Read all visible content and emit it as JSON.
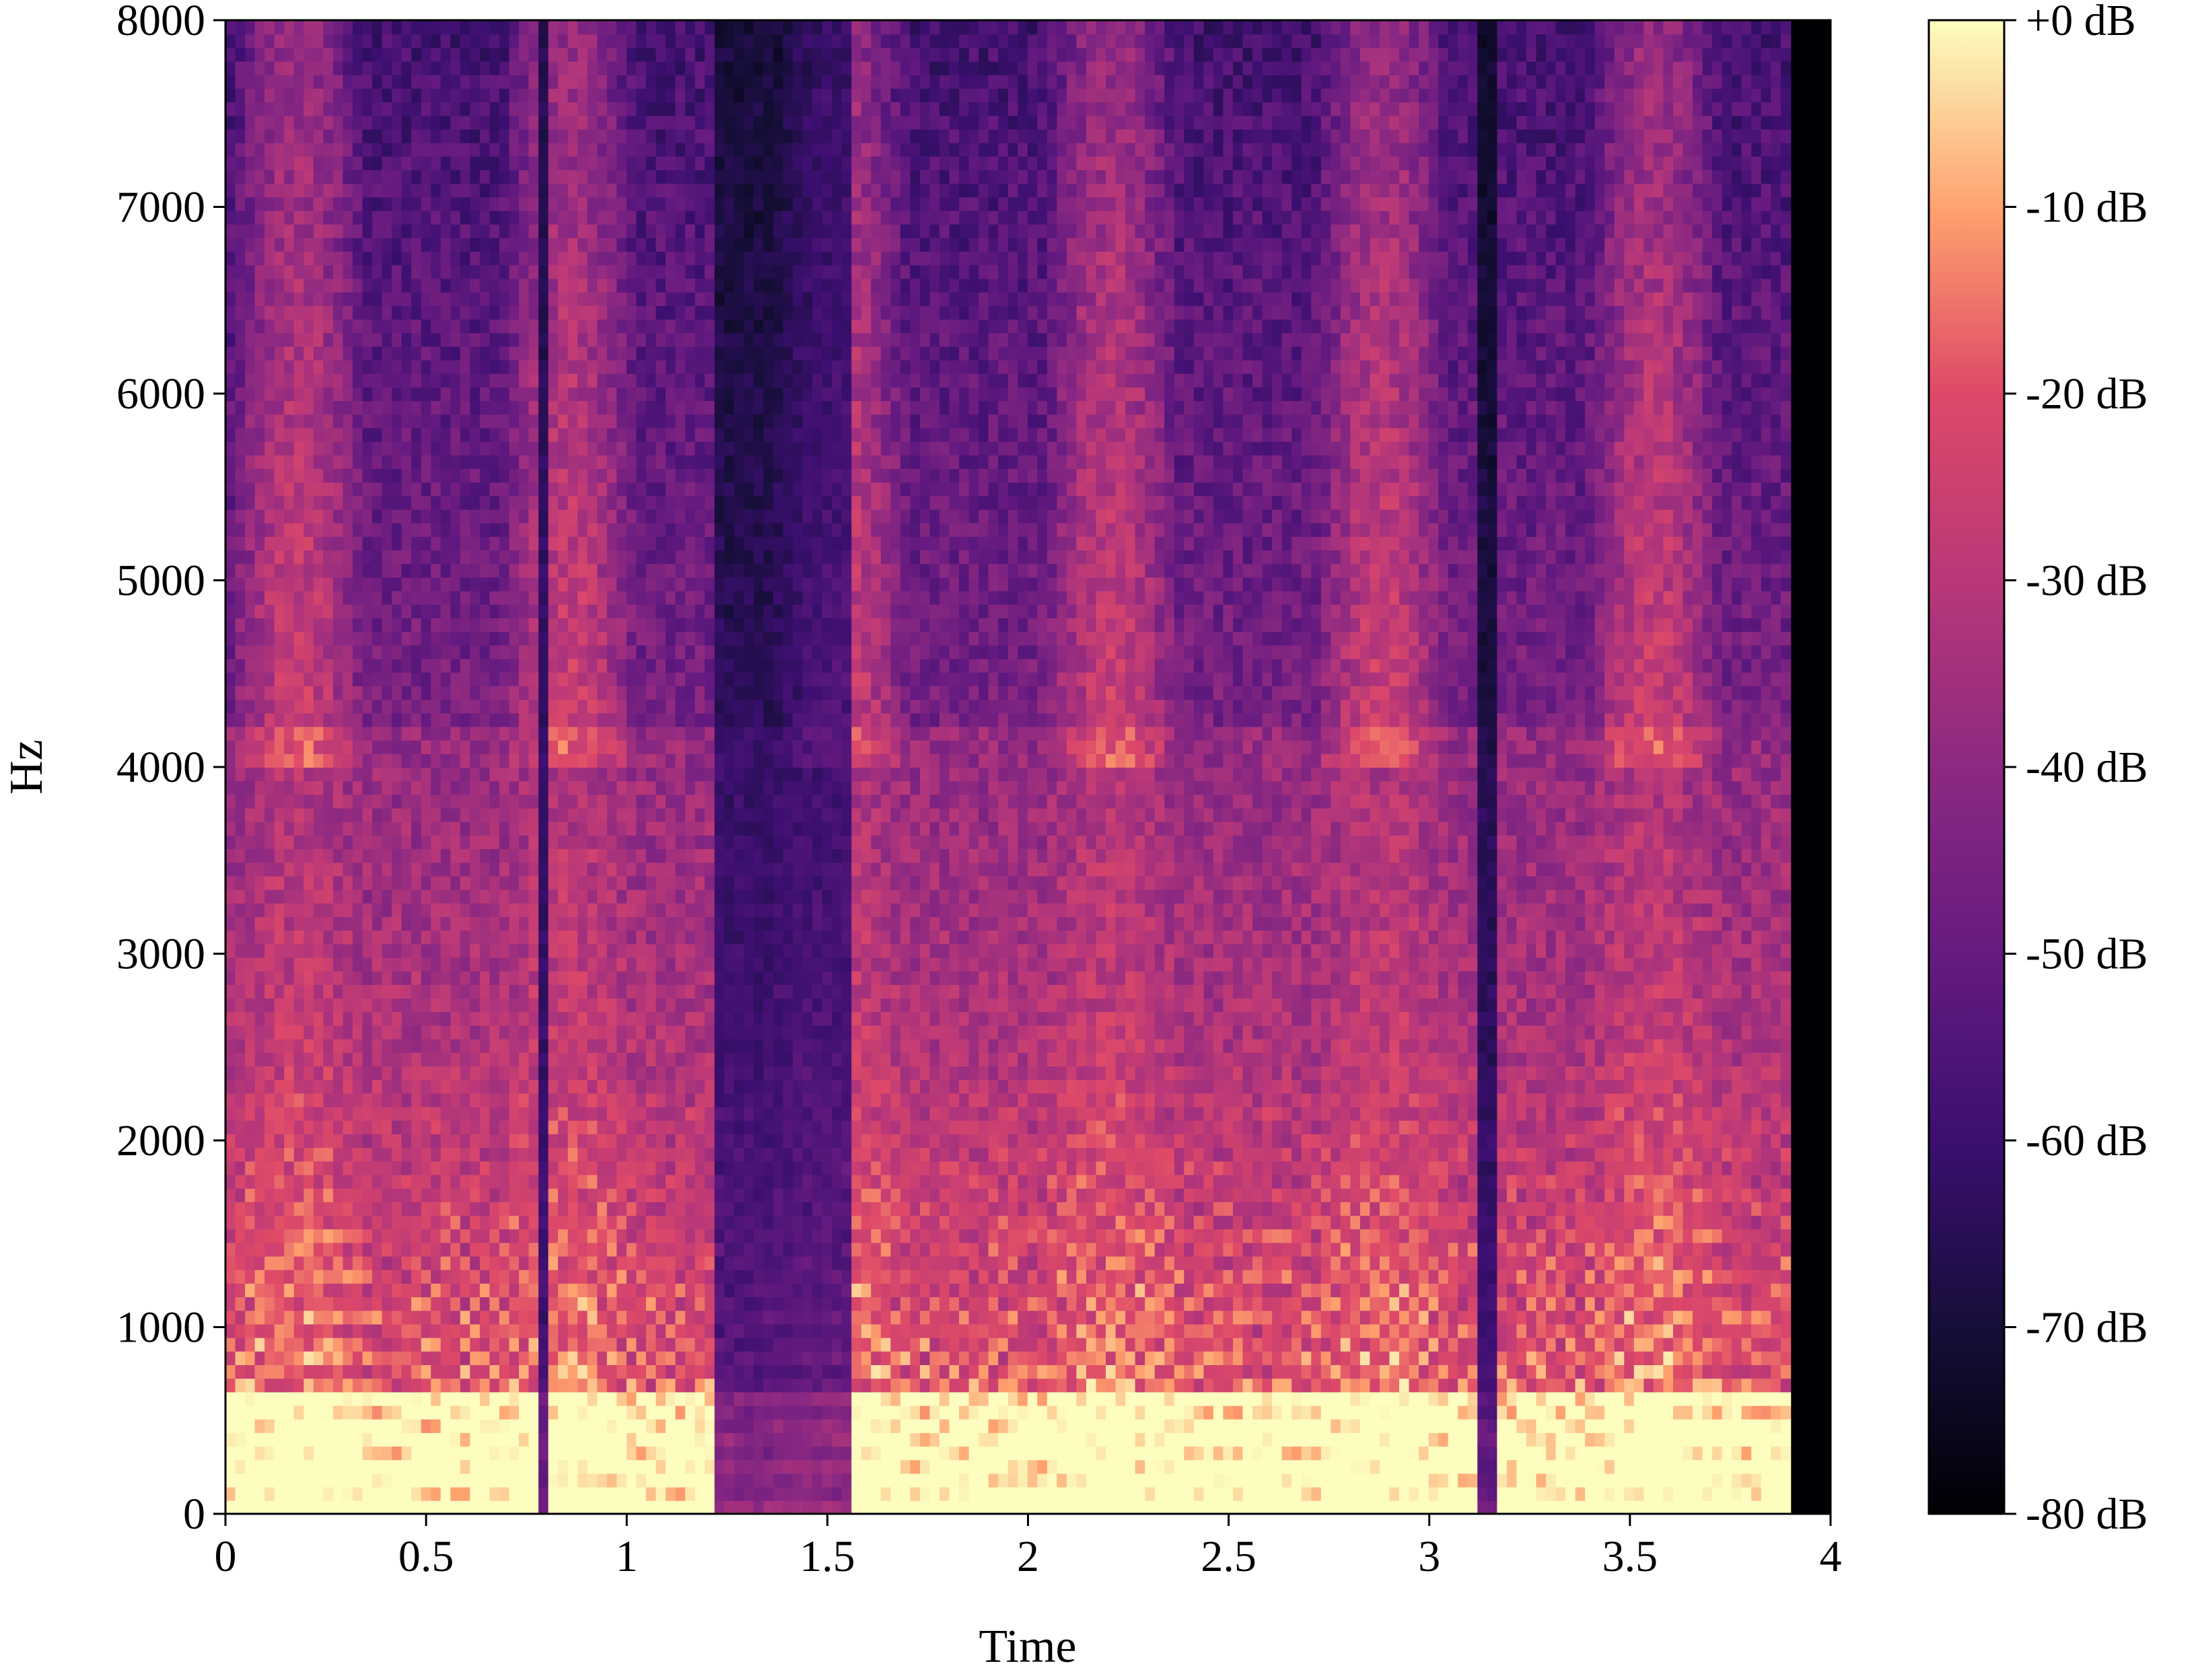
{
  "chart_data": {
    "type": "heatmap",
    "subtype": "spectrogram",
    "title": "",
    "xlabel": "Time",
    "ylabel": "Hz",
    "xlim": [
      0,
      4.0
    ],
    "ylim": [
      0,
      8000
    ],
    "x_ticks": [
      0,
      0.5,
      1,
      1.5,
      2,
      2.5,
      3,
      3.5,
      4
    ],
    "x_tick_labels": [
      "0",
      "0.5",
      "1",
      "1.5",
      "2",
      "2.5",
      "3",
      "3.5",
      "4"
    ],
    "y_ticks": [
      0,
      1000,
      2000,
      3000,
      4000,
      5000,
      6000,
      7000,
      8000
    ],
    "y_tick_labels": [
      "0",
      "1000",
      "2000",
      "3000",
      "4000",
      "5000",
      "6000",
      "7000",
      "8000"
    ],
    "colorbar": {
      "colormap": "magma",
      "range_db": [
        -80,
        0
      ],
      "ticks": [
        0,
        -10,
        -20,
        -30,
        -40,
        -50,
        -60,
        -70,
        -80
      ],
      "tick_labels": [
        "+0 dB",
        "-10 dB",
        "-20 dB",
        "-30 dB",
        "-40 dB",
        "-50 dB",
        "-60 dB",
        "-70 dB",
        "-80 dB"
      ]
    },
    "grid": false,
    "data_extent_seconds": [
      0,
      3.9
    ],
    "notes_segments_sec": [
      {
        "start": 0.0,
        "end": 0.76,
        "kind": "voiced"
      },
      {
        "start": 0.76,
        "end": 0.8,
        "kind": "gap"
      },
      {
        "start": 0.8,
        "end": 1.2,
        "kind": "voiced"
      },
      {
        "start": 1.2,
        "end": 1.55,
        "kind": "low-energy"
      },
      {
        "start": 1.55,
        "end": 2.8,
        "kind": "voiced"
      },
      {
        "start": 2.8,
        "end": 3.1,
        "kind": "voiced"
      },
      {
        "start": 3.1,
        "end": 3.15,
        "kind": "gap"
      },
      {
        "start": 3.15,
        "end": 3.9,
        "kind": "voiced"
      },
      {
        "start": 3.9,
        "end": 4.0,
        "kind": "silence"
      }
    ]
  }
}
